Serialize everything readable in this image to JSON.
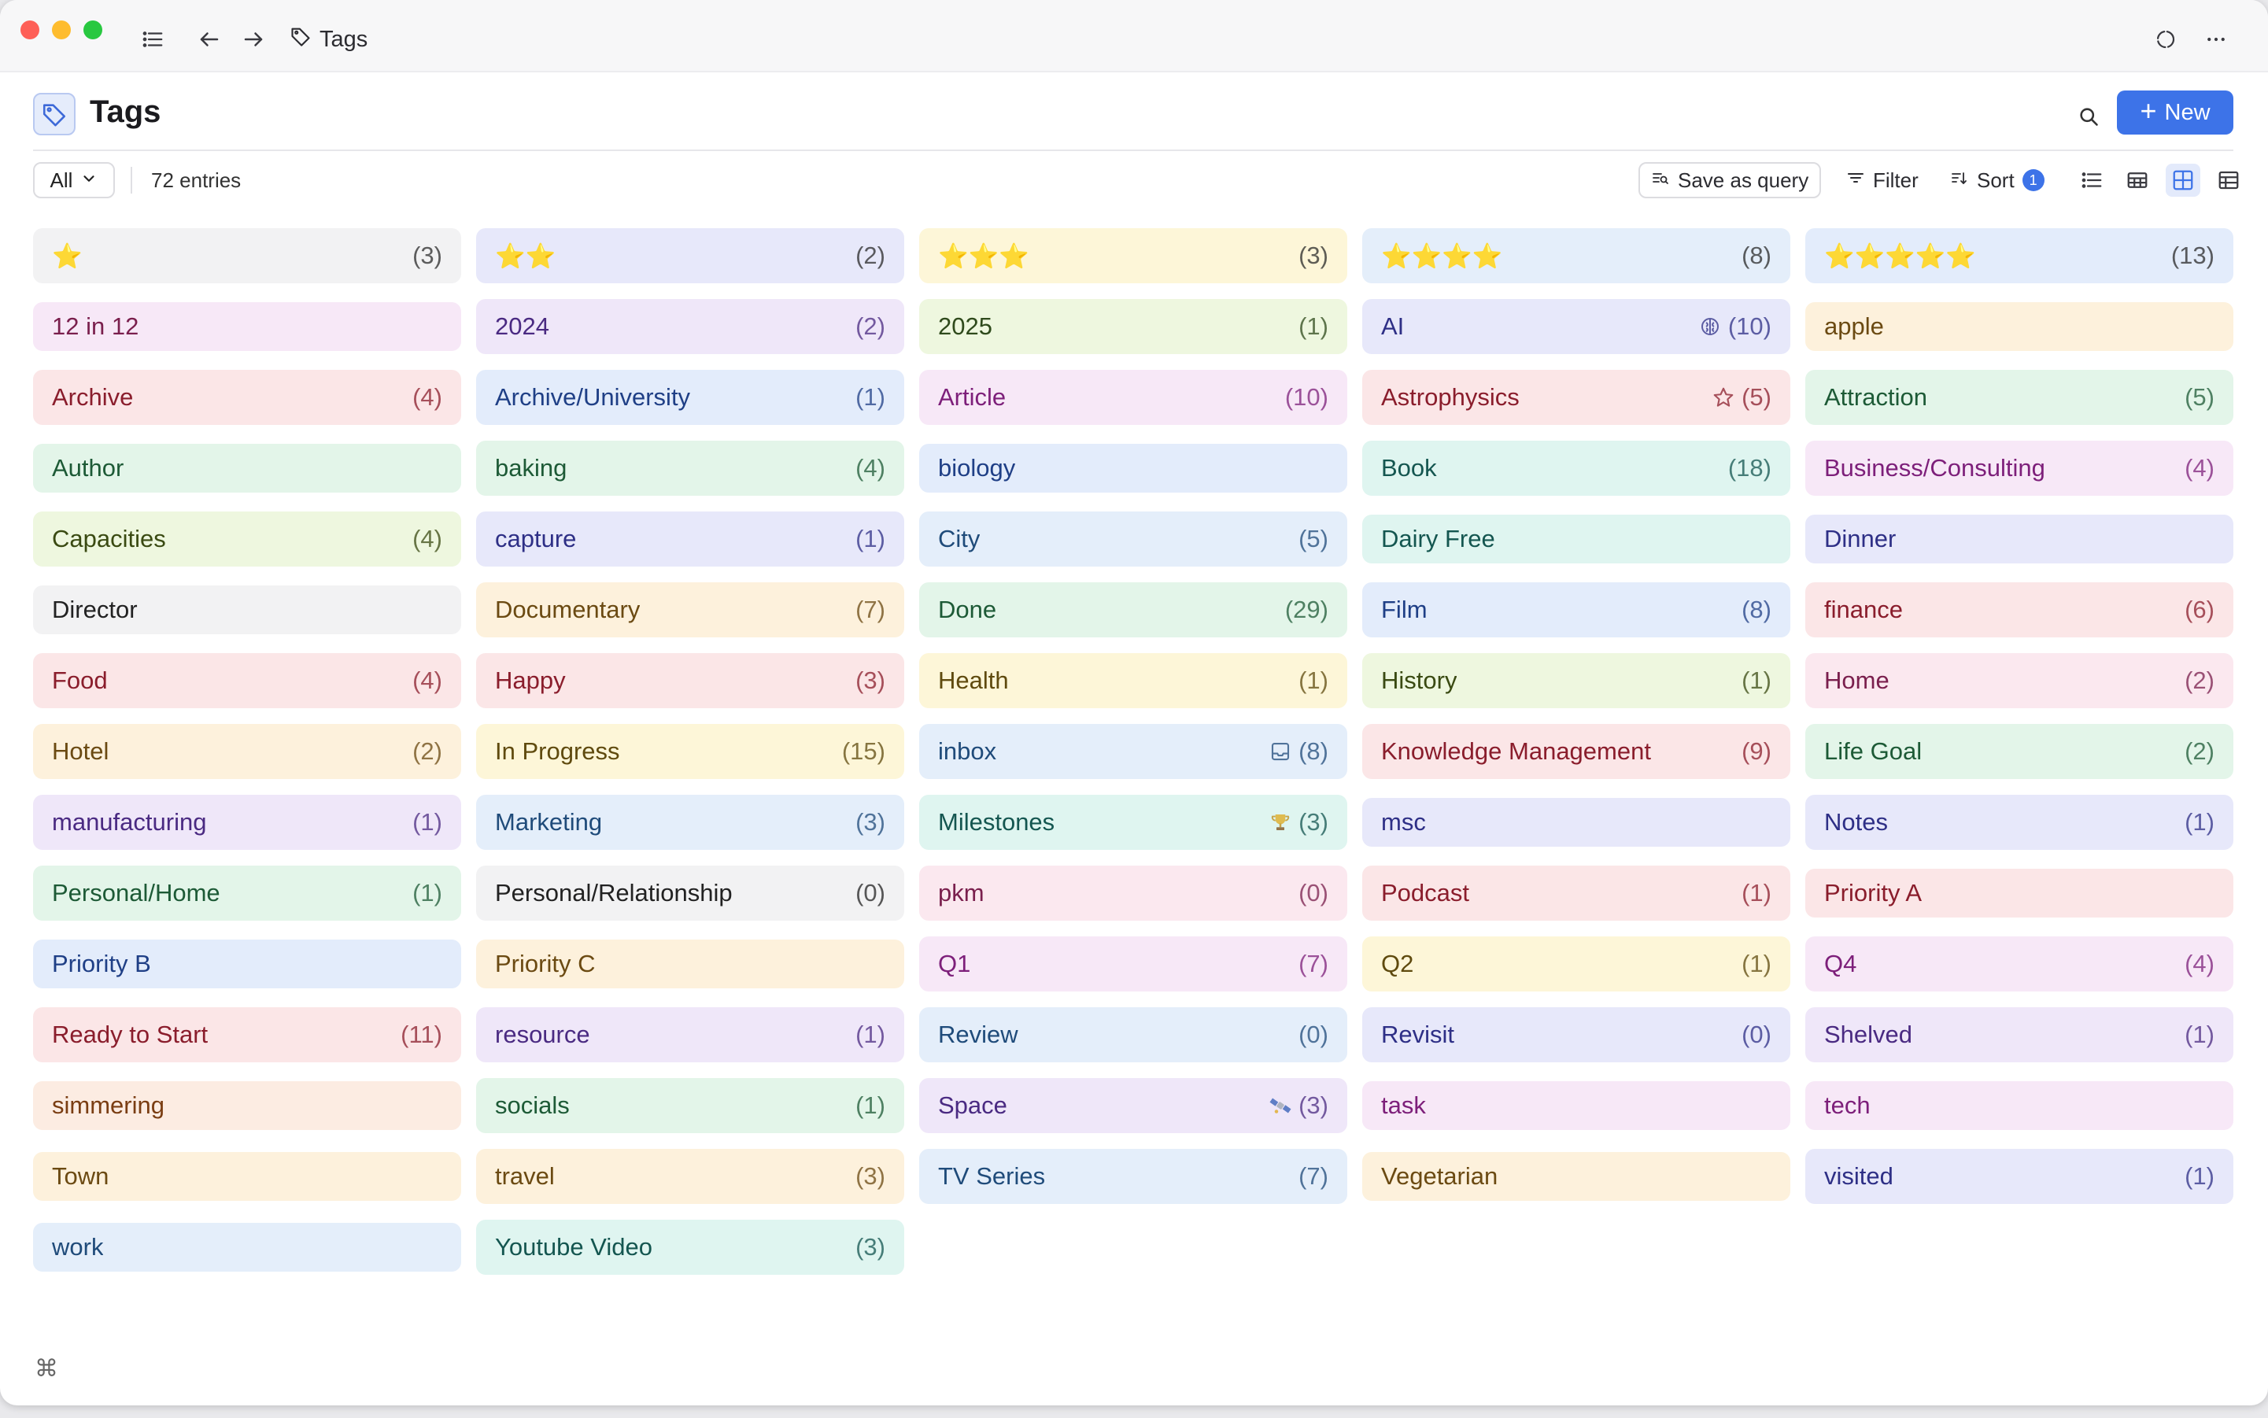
{
  "window": {
    "breadcrumb": "Tags"
  },
  "header": {
    "title": "Tags",
    "new_label": "New"
  },
  "toolbar": {
    "filter_select": "All",
    "entries": "72 entries",
    "save_query": "Save as query",
    "filter": "Filter",
    "sort": "Sort",
    "sort_count": "1"
  },
  "footer": {
    "shortcut": "⌘"
  },
  "colors": {
    "accent": "#3d73e8",
    "gray": "#f2f2f3",
    "rose": "#fbe8ef",
    "red": "#fbe6e7",
    "orange": "#fcece2",
    "yellow": "#fdf6d8",
    "lime": "#eef7df",
    "green": "#e3f5e9",
    "teal": "#dff5f0",
    "blue": "#e3ecfb",
    "lightblue": "#e4eefa",
    "indigo": "#e7e8fa",
    "purple": "#efe7f9",
    "pink": "#f7e8f7",
    "cream": "#fdf1dc"
  },
  "tags": [
    {
      "label": "⭐",
      "count": "(3)",
      "color": "gray",
      "text": "#2a2a2a"
    },
    {
      "label": "⭐⭐",
      "count": "(2)",
      "color": "indigo",
      "text": "#2a2a2a"
    },
    {
      "label": "⭐⭐⭐",
      "count": "(3)",
      "color": "yellow",
      "text": "#2a2a2a"
    },
    {
      "label": "⭐⭐⭐⭐",
      "count": "(8)",
      "color": "lightblue",
      "text": "#2a2a2a"
    },
    {
      "label": "⭐⭐⭐⭐⭐",
      "count": "(13)",
      "color": "blue",
      "text": "#2a2a2a"
    },
    {
      "label": "12 in 12",
      "count": "",
      "color": "pink",
      "text": "#7a1f4d"
    },
    {
      "label": "2024",
      "count": "(2)",
      "color": "purple",
      "text": "#4a2a82"
    },
    {
      "label": "2025",
      "count": "(1)",
      "color": "lime",
      "text": "#2f4a1c"
    },
    {
      "label": "AI",
      "count": "(10)",
      "color": "indigo",
      "text": "#2e2f86",
      "icon": "brain-icon"
    },
    {
      "label": "apple",
      "count": "",
      "color": "cream",
      "text": "#6b4a12"
    },
    {
      "label": "Archive",
      "count": "(4)",
      "color": "red",
      "text": "#8a1d2c"
    },
    {
      "label": "Archive/University",
      "count": "(1)",
      "color": "blue",
      "text": "#1f3f86"
    },
    {
      "label": "Article",
      "count": "(10)",
      "color": "pink",
      "text": "#7d1f7a"
    },
    {
      "label": "Astrophysics",
      "count": "(5)",
      "color": "red",
      "text": "#8a1d2c",
      "icon": "star-outline-icon"
    },
    {
      "label": "Attraction",
      "count": "(5)",
      "color": "green",
      "text": "#1d5a36"
    },
    {
      "label": "Author",
      "count": "",
      "color": "green",
      "text": "#1d5a36"
    },
    {
      "label": "baking",
      "count": "(4)",
      "color": "green",
      "text": "#1d5a36"
    },
    {
      "label": "biology",
      "count": "",
      "color": "blue",
      "text": "#1f3f86"
    },
    {
      "label": "Book",
      "count": "(18)",
      "color": "teal",
      "text": "#145650"
    },
    {
      "label": "Business/Consulting",
      "count": "(4)",
      "color": "pink",
      "text": "#7d1f7a"
    },
    {
      "label": "Capacities",
      "count": "(4)",
      "color": "lime",
      "text": "#3a4a12"
    },
    {
      "label": "capture",
      "count": "(1)",
      "color": "indigo",
      "text": "#2e2f86"
    },
    {
      "label": "City",
      "count": "(5)",
      "color": "lightblue",
      "text": "#1f4b7a"
    },
    {
      "label": "Dairy Free",
      "count": "",
      "color": "teal",
      "text": "#145650"
    },
    {
      "label": "Dinner",
      "count": "",
      "color": "indigo",
      "text": "#2e2f86"
    },
    {
      "label": "Director",
      "count": "",
      "color": "gray",
      "text": "#222222"
    },
    {
      "label": "Documentary",
      "count": "(7)",
      "color": "cream",
      "text": "#6b4a12"
    },
    {
      "label": "Done",
      "count": "(29)",
      "color": "green",
      "text": "#1d5a36"
    },
    {
      "label": "Film",
      "count": "(8)",
      "color": "blue",
      "text": "#1f3f86"
    },
    {
      "label": "finance",
      "count": "(6)",
      "color": "red",
      "text": "#8a1d2c"
    },
    {
      "label": "Food",
      "count": "(4)",
      "color": "red",
      "text": "#8a1d2c"
    },
    {
      "label": "Happy",
      "count": "(3)",
      "color": "red",
      "text": "#8a1d2c"
    },
    {
      "label": "Health",
      "count": "(1)",
      "color": "yellow",
      "text": "#5f4a0e"
    },
    {
      "label": "History",
      "count": "(1)",
      "color": "lime",
      "text": "#3a4a12"
    },
    {
      "label": "Home",
      "count": "(2)",
      "color": "rose",
      "text": "#7a1f4d"
    },
    {
      "label": "Hotel",
      "count": "(2)",
      "color": "cream",
      "text": "#6b4a12"
    },
    {
      "label": "In Progress",
      "count": "(15)",
      "color": "yellow",
      "text": "#5f4a0e"
    },
    {
      "label": "inbox",
      "count": "(8)",
      "color": "lightblue",
      "text": "#1f4b7a",
      "icon": "inbox-icon"
    },
    {
      "label": "Knowledge Management",
      "count": "(9)",
      "color": "red",
      "text": "#8a1d2c"
    },
    {
      "label": "Life Goal",
      "count": "(2)",
      "color": "green",
      "text": "#1d5a36"
    },
    {
      "label": "manufacturing",
      "count": "(1)",
      "color": "purple",
      "text": "#4a2a82"
    },
    {
      "label": "Marketing",
      "count": "(3)",
      "color": "lightblue",
      "text": "#1f4b7a"
    },
    {
      "label": "Milestones",
      "count": "(3)",
      "color": "teal",
      "text": "#145650",
      "icon": "trophy-icon"
    },
    {
      "label": "msc",
      "count": "",
      "color": "indigo",
      "text": "#2e2f86"
    },
    {
      "label": "Notes",
      "count": "(1)",
      "color": "indigo",
      "text": "#2e2f86"
    },
    {
      "label": "Personal/Home",
      "count": "(1)",
      "color": "green",
      "text": "#1d5a36"
    },
    {
      "label": "Personal/Relationship",
      "count": "(0)",
      "color": "gray",
      "text": "#222222"
    },
    {
      "label": "pkm",
      "count": "(0)",
      "color": "rose",
      "text": "#7a1f4d"
    },
    {
      "label": "Podcast",
      "count": "(1)",
      "color": "red",
      "text": "#8a1d2c"
    },
    {
      "label": "Priority A",
      "count": "",
      "color": "red",
      "text": "#8a1d2c"
    },
    {
      "label": "Priority B",
      "count": "",
      "color": "blue",
      "text": "#1f3f86"
    },
    {
      "label": "Priority C",
      "count": "",
      "color": "cream",
      "text": "#6b4a12"
    },
    {
      "label": "Q1",
      "count": "(7)",
      "color": "pink",
      "text": "#7d1f7a"
    },
    {
      "label": "Q2",
      "count": "(1)",
      "color": "yellow",
      "text": "#5f4a0e"
    },
    {
      "label": "Q4",
      "count": "(4)",
      "color": "pink",
      "text": "#7d1f7a"
    },
    {
      "label": "Ready to Start",
      "count": "(11)",
      "color": "red",
      "text": "#8a1d2c"
    },
    {
      "label": "resource",
      "count": "(1)",
      "color": "purple",
      "text": "#4a2a82"
    },
    {
      "label": "Review",
      "count": "(0)",
      "color": "lightblue",
      "text": "#1f4b7a"
    },
    {
      "label": "Revisit",
      "count": "(0)",
      "color": "indigo",
      "text": "#2e2f86"
    },
    {
      "label": "Shelved",
      "count": "(1)",
      "color": "purple",
      "text": "#4a2a82"
    },
    {
      "label": "simmering",
      "count": "",
      "color": "orange",
      "text": "#7a3d12"
    },
    {
      "label": "socials",
      "count": "(1)",
      "color": "green",
      "text": "#1d5a36"
    },
    {
      "label": "Space",
      "count": "(3)",
      "color": "purple",
      "text": "#4a2a82",
      "icon": "satellite-icon"
    },
    {
      "label": "task",
      "count": "",
      "color": "pink",
      "text": "#7d1f7a"
    },
    {
      "label": "tech",
      "count": "",
      "color": "pink",
      "text": "#7d1f7a"
    },
    {
      "label": "Town",
      "count": "",
      "color": "cream",
      "text": "#6b4a12"
    },
    {
      "label": "travel",
      "count": "(3)",
      "color": "cream",
      "text": "#6b4a12"
    },
    {
      "label": "TV Series",
      "count": "(7)",
      "color": "lightblue",
      "text": "#1f4b7a"
    },
    {
      "label": "Vegetarian",
      "count": "",
      "color": "cream",
      "text": "#6b4a12"
    },
    {
      "label": "visited",
      "count": "(1)",
      "color": "indigo",
      "text": "#2e2f86"
    },
    {
      "label": "work",
      "count": "",
      "color": "lightblue",
      "text": "#1f4b7a"
    },
    {
      "label": "Youtube Video",
      "count": "(3)",
      "color": "teal",
      "text": "#145650"
    }
  ]
}
